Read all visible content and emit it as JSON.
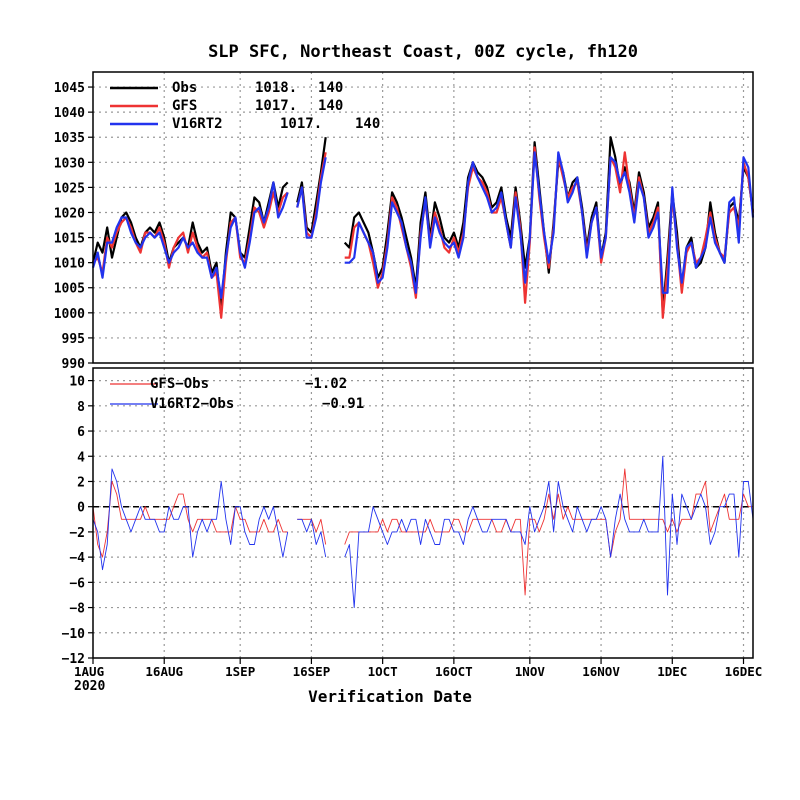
{
  "title": "SLP SFC, Northeast Coast, 00Z cycle, fh120",
  "x_axis_title": "Verification Date",
  "x_year_label": "2020",
  "colors": {
    "obs": "#000000",
    "gfs": "#ee3333",
    "v16": "#2233ee",
    "grid": "#999999"
  },
  "chart_data": [
    {
      "type": "line",
      "panel": "top",
      "ylim": [
        990,
        1048
      ],
      "yticks": [
        "990",
        "995",
        "1000",
        "1005",
        "1010",
        "1015",
        "1020",
        "1025",
        "1030",
        "1035",
        "1040",
        "1045"
      ],
      "x_range_days": [
        0,
        139
      ],
      "xticks": [
        "1AUG",
        "16AUG",
        "1SEP",
        "16SEP",
        "1OCT",
        "16OCT",
        "1NOV",
        "16NOV",
        "1DEC",
        "16DEC"
      ],
      "xtick_days": [
        0,
        15,
        31,
        46,
        61,
        76,
        92,
        107,
        122,
        137
      ],
      "grid": true,
      "legend": [
        {
          "key": "obs",
          "label": "Obs",
          "mean": "1018.",
          "count": "140"
        },
        {
          "key": "gfs",
          "label": "GFS",
          "mean": "1017.",
          "count": "140"
        },
        {
          "key": "v16",
          "label": "V16RT2",
          "mean": "1017.",
          "count": "140"
        }
      ],
      "series": [
        {
          "name": "Obs",
          "key": "obs",
          "values": [
            1010,
            1014,
            1012,
            1017,
            1011,
            1015,
            1019,
            1020,
            1018,
            1015,
            1013,
            1016,
            1017,
            1016,
            1018,
            1015,
            1010,
            1013,
            1014,
            1015,
            1013,
            1018,
            1014,
            1012,
            1013,
            1008,
            1010,
            1001,
            1012,
            1020,
            1019,
            1012,
            1011,
            1017,
            1023,
            1022,
            1018,
            1022,
            1026,
            1021,
            1025,
            1026,
            null,
            1022,
            1026,
            1017,
            1016,
            1022,
            1028,
            1035,
            null,
            null,
            null,
            1014,
            1013,
            1019,
            1020,
            1018,
            1016,
            1012,
            1007,
            1009,
            1016,
            1024,
            1022,
            1019,
            1015,
            1011,
            1005,
            1018,
            1024,
            1015,
            1022,
            1019,
            1015,
            1014,
            1016,
            1013,
            1018,
            1027,
            1030,
            1028,
            1027,
            1025,
            1021,
            1022,
            1025,
            1019,
            1015,
            1025,
            1018,
            1009,
            1015,
            1034,
            1025,
            1016,
            1008,
            1018,
            1030,
            1028,
            1023,
            1026,
            1027,
            1021,
            1013,
            1019,
            1022,
            1011,
            1016,
            1035,
            1031,
            1025,
            1029,
            1026,
            1020,
            1028,
            1024,
            1017,
            1019,
            1022,
            1000,
            1011,
            1024,
            1016,
            1005,
            1013,
            1015,
            1009,
            1010,
            1013,
            1022,
            1016,
            1012,
            1010,
            1021,
            1022,
            1018,
            1029,
            1027,
            1020
          ]
        },
        {
          "name": "GFS",
          "key": "gfs",
          "values": [
            1010,
            1011,
            1008,
            1015,
            1013,
            1016,
            1018,
            1019,
            1017,
            1014,
            1012,
            1016,
            1016,
            1015,
            1017,
            1014,
            1009,
            1013,
            1015,
            1016,
            1012,
            1016,
            1013,
            1011,
            1012,
            1007,
            1008,
            999,
            1010,
            1018,
            1019,
            1011,
            1010,
            1015,
            1021,
            1020,
            1017,
            1020,
            1024,
            1020,
            1023,
            1024,
            null,
            1021,
            1025,
            1016,
            1015,
            1020,
            1027,
            1032,
            null,
            null,
            null,
            1011,
            1011,
            1017,
            1018,
            1016,
            1014,
            1010,
            1005,
            1008,
            1014,
            1023,
            1021,
            1017,
            1013,
            1009,
            1003,
            1016,
            1022,
            1014,
            1020,
            1017,
            1013,
            1012,
            1015,
            1012,
            1016,
            1025,
            1029,
            1027,
            1026,
            1024,
            1020,
            1020,
            1023,
            1018,
            1013,
            1024,
            1017,
            1002,
            1014,
            1033,
            1023,
            1015,
            1009,
            1017,
            1031,
            1027,
            1023,
            1025,
            1026,
            1020,
            1012,
            1018,
            1021,
            1010,
            1015,
            1031,
            1029,
            1024,
            1032,
            1025,
            1019,
            1027,
            1023,
            1016,
            1018,
            1021,
            999,
            1009,
            1023,
            1014,
            1004,
            1012,
            1014,
            1010,
            1011,
            1015,
            1020,
            1015,
            1012,
            1011,
            1020,
            1021,
            1017,
            1030,
            1027,
            1020
          ]
        },
        {
          "name": "V16RT2",
          "key": "v16",
          "values": [
            1009,
            1012,
            1007,
            1014,
            1014,
            1017,
            1019,
            1019,
            1016,
            1014,
            1013,
            1015,
            1016,
            1015,
            1016,
            1013,
            1010,
            1012,
            1013,
            1015,
            1013,
            1014,
            1012,
            1011,
            1011,
            1007,
            1009,
            1003,
            1011,
            1017,
            1019,
            1012,
            1009,
            1014,
            1020,
            1021,
            1018,
            1021,
            1026,
            1019,
            1021,
            1024,
            null,
            1021,
            1025,
            1015,
            1015,
            1019,
            1026,
            1031,
            null,
            null,
            null,
            1010,
            1010,
            1011,
            1018,
            1016,
            1014,
            1012,
            1006,
            1007,
            1013,
            1022,
            1020,
            1018,
            1013,
            1010,
            1004,
            1015,
            1023,
            1013,
            1019,
            1016,
            1014,
            1013,
            1014,
            1011,
            1015,
            1026,
            1030,
            1027,
            1025,
            1023,
            1020,
            1021,
            1024,
            1018,
            1013,
            1023,
            1016,
            1006,
            1015,
            1032,
            1024,
            1016,
            1010,
            1016,
            1032,
            1028,
            1022,
            1024,
            1027,
            1020,
            1011,
            1018,
            1021,
            1011,
            1015,
            1031,
            1030,
            1026,
            1028,
            1024,
            1018,
            1026,
            1023,
            1015,
            1017,
            1020,
            1004,
            1004,
            1025,
            1013,
            1006,
            1013,
            1014,
            1009,
            1011,
            1013,
            1019,
            1014,
            1012,
            1010,
            1022,
            1023,
            1014,
            1031,
            1029,
            1019
          ]
        }
      ]
    },
    {
      "type": "line",
      "panel": "bottom",
      "ylim": [
        -12,
        11
      ],
      "yticks": [
        "−12",
        "−10",
        "−8",
        "−6",
        "−4",
        "−2",
        "0",
        "2",
        "4",
        "6",
        "8",
        "10"
      ],
      "x_range_days": [
        0,
        139
      ],
      "grid": true,
      "legend": [
        {
          "key": "gfs",
          "label": "GFS−Obs",
          "mean": "−1.02"
        },
        {
          "key": "v16",
          "label": "V16RT2−Obs",
          "mean": "−0.91"
        }
      ],
      "series": [
        {
          "name": "GFS−Obs",
          "key": "gfs",
          "values": [
            0,
            -3,
            -4,
            -2,
            2,
            1,
            -1,
            -1,
            -1,
            -1,
            -1,
            0,
            -1,
            -1,
            -1,
            -1,
            -1,
            0,
            1,
            1,
            -1,
            -2,
            -1,
            -1,
            -1,
            -1,
            -2,
            -2,
            -2,
            -2,
            0,
            -1,
            -1,
            -2,
            -2,
            -2,
            -1,
            -2,
            -2,
            -1,
            -2,
            -2,
            null,
            -1,
            -1,
            -1,
            -1,
            -2,
            -1,
            -3,
            null,
            null,
            null,
            -3,
            -2,
            -2,
            -2,
            -2,
            -2,
            -2,
            -2,
            -1,
            -2,
            -1,
            -1,
            -2,
            -2,
            -2,
            -2,
            -2,
            -2,
            -1,
            -2,
            -2,
            -2,
            -2,
            -1,
            -1,
            -2,
            -2,
            -1,
            -1,
            -1,
            -1,
            -1,
            -2,
            -2,
            -1,
            -2,
            -1,
            -1,
            -7,
            -1,
            -1,
            -2,
            -1,
            1,
            -1,
            1,
            -1,
            0,
            -1,
            -1,
            -1,
            -1,
            -1,
            -1,
            -1,
            -1,
            -4,
            -2,
            -1,
            3,
            -1,
            -1,
            -1,
            -1,
            -1,
            -1,
            -1,
            -1,
            -2,
            -1,
            -2,
            -1,
            -1,
            -1,
            1,
            1,
            2,
            -2,
            -1,
            0,
            1,
            -1,
            -1,
            -1,
            1,
            0,
            0
          ]
        },
        {
          "name": "V16RT2−Obs",
          "key": "v16",
          "values": [
            -1,
            -2,
            -5,
            -3,
            3,
            2,
            0,
            -1,
            -2,
            -1,
            0,
            -1,
            -1,
            -1,
            -2,
            -2,
            0,
            -1,
            -1,
            0,
            0,
            -4,
            -2,
            -1,
            -2,
            -1,
            -1,
            2,
            -1,
            -3,
            0,
            0,
            -2,
            -3,
            -3,
            -1,
            0,
            -1,
            0,
            -2,
            -4,
            -2,
            null,
            -1,
            -1,
            -2,
            -1,
            -3,
            -2,
            -4,
            null,
            null,
            null,
            -4,
            -3,
            -8,
            -2,
            -2,
            -2,
            0,
            -1,
            -2,
            -3,
            -2,
            -2,
            -1,
            -2,
            -1,
            -1,
            -3,
            -1,
            -2,
            -3,
            -3,
            -1,
            -1,
            -2,
            -2,
            -3,
            -1,
            0,
            -1,
            -2,
            -2,
            -1,
            -1,
            -1,
            -1,
            -2,
            -2,
            -2,
            -3,
            0,
            -2,
            -1,
            0,
            2,
            -2,
            2,
            0,
            -1,
            -2,
            0,
            -1,
            -2,
            -1,
            -1,
            0,
            -1,
            -4,
            -1,
            1,
            -1,
            -2,
            -2,
            -2,
            -1,
            -2,
            -2,
            -2,
            4,
            -7,
            1,
            -3,
            1,
            0,
            -1,
            0,
            1,
            0,
            -3,
            -2,
            0,
            0,
            1,
            1,
            -4,
            2,
            2,
            -1
          ]
        }
      ]
    }
  ]
}
